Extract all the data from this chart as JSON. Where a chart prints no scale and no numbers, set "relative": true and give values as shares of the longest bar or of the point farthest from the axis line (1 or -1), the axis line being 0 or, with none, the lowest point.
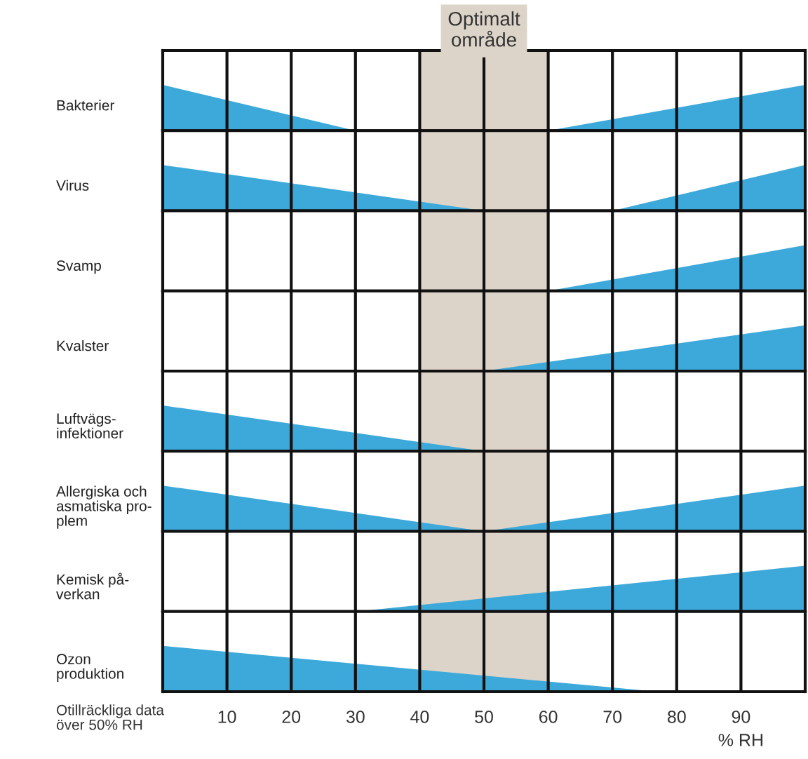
{
  "chart_data": [
    {
      "type": "area",
      "relative": true,
      "ylabel": "Bakterier",
      "xlim": [
        0,
        100
      ],
      "xticks": [
        10,
        20,
        30,
        40,
        50,
        60,
        70,
        80,
        90
      ],
      "grid": "x",
      "tick_labels": false,
      "bands": [
        {
          "axis": "x",
          "from": 40,
          "to": 60,
          "label": "Optimalt\nområde",
          "color": "#dcd4c9"
        }
      ],
      "series": [
        {
          "color": "#3da9da",
          "x": [
            0,
            30
          ],
          "values": [
            1,
            0
          ]
        },
        {
          "color": "#3da9da",
          "x": [
            60,
            100
          ],
          "values": [
            0,
            1
          ]
        }
      ]
    },
    {
      "type": "area",
      "relative": true,
      "ylabel": "Virus",
      "xlim": [
        0,
        100
      ],
      "xticks": [
        10,
        20,
        30,
        40,
        50,
        60,
        70,
        80,
        90
      ],
      "grid": "x",
      "tick_labels": false,
      "bands": [
        {
          "axis": "x",
          "from": 40,
          "to": 60,
          "color": "#dcd4c9"
        }
      ],
      "series": [
        {
          "color": "#3da9da",
          "x": [
            0,
            50
          ],
          "values": [
            1,
            0
          ]
        },
        {
          "color": "#3da9da",
          "x": [
            70,
            100
          ],
          "values": [
            0,
            1
          ]
        }
      ]
    },
    {
      "type": "area",
      "relative": true,
      "ylabel": "Svamp",
      "xlim": [
        0,
        100
      ],
      "xticks": [
        10,
        20,
        30,
        40,
        50,
        60,
        70,
        80,
        90
      ],
      "grid": "x",
      "tick_labels": false,
      "bands": [
        {
          "axis": "x",
          "from": 40,
          "to": 60,
          "color": "#dcd4c9"
        }
      ],
      "series": [
        {
          "color": "#3da9da",
          "x": [
            60,
            100
          ],
          "values": [
            0,
            1
          ]
        }
      ]
    },
    {
      "type": "area",
      "relative": true,
      "ylabel": "Kvalster",
      "xlim": [
        0,
        100
      ],
      "xticks": [
        10,
        20,
        30,
        40,
        50,
        60,
        70,
        80,
        90
      ],
      "grid": "x",
      "tick_labels": false,
      "bands": [
        {
          "axis": "x",
          "from": 40,
          "to": 60,
          "color": "#dcd4c9"
        }
      ],
      "series": [
        {
          "color": "#3da9da",
          "x": [
            50,
            100
          ],
          "values": [
            0,
            1
          ]
        }
      ]
    },
    {
      "type": "area",
      "relative": true,
      "ylabel": "Luftvägs-\ninfektioner",
      "xlim": [
        0,
        100
      ],
      "xticks": [
        10,
        20,
        30,
        40,
        50,
        60,
        70,
        80,
        90
      ],
      "grid": "x",
      "tick_labels": false,
      "bands": [
        {
          "axis": "x",
          "from": 40,
          "to": 60,
          "color": "#dcd4c9"
        }
      ],
      "series": [
        {
          "color": "#3da9da",
          "x": [
            0,
            50
          ],
          "values": [
            1,
            0
          ]
        }
      ]
    },
    {
      "type": "area",
      "relative": true,
      "ylabel": "Allergiska och\nasmatiska pro-\nplem",
      "xlim": [
        0,
        100
      ],
      "xticks": [
        10,
        20,
        30,
        40,
        50,
        60,
        70,
        80,
        90
      ],
      "grid": "x",
      "tick_labels": false,
      "bands": [
        {
          "axis": "x",
          "from": 40,
          "to": 60,
          "color": "#dcd4c9"
        }
      ],
      "series": [
        {
          "color": "#3da9da",
          "x": [
            0,
            50,
            100
          ],
          "values": [
            1,
            0,
            1
          ]
        }
      ]
    },
    {
      "type": "area",
      "relative": true,
      "ylabel": "Kemisk på-\nverkan",
      "xlim": [
        0,
        100
      ],
      "xticks": [
        10,
        20,
        30,
        40,
        50,
        60,
        70,
        80,
        90
      ],
      "grid": "x",
      "tick_labels": false,
      "bands": [
        {
          "axis": "x",
          "from": 40,
          "to": 60,
          "color": "#dcd4c9"
        }
      ],
      "series": [
        {
          "color": "#3da9da",
          "x": [
            30,
            100
          ],
          "values": [
            0,
            1
          ]
        }
      ]
    },
    {
      "type": "area",
      "relative": true,
      "ylabel": "Ozon\nproduktion",
      "xlabel": "% RH",
      "xlim": [
        0,
        100
      ],
      "xticks": [
        10,
        20,
        30,
        40,
        50,
        60,
        70,
        80,
        90
      ],
      "grid": "x",
      "tick_labels": "x",
      "annotations": [
        "Otillräckliga data\növer 50% RH"
      ],
      "bands": [
        {
          "axis": "x",
          "from": 40,
          "to": 60,
          "color": "#dcd4c9"
        }
      ],
      "series": [
        {
          "color": "#3da9da",
          "x": [
            0,
            77
          ],
          "values": [
            1,
            0
          ]
        }
      ]
    }
  ]
}
